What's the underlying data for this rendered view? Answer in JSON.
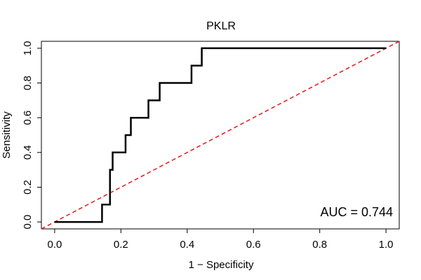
{
  "chart_data": {
    "type": "line",
    "title": "PKLR",
    "xlabel": "1 − Specificity",
    "ylabel": "Sensitivity",
    "xlim": [
      -0.04,
      1.04
    ],
    "ylim": [
      -0.04,
      1.04
    ],
    "xticks": [
      "0.0",
      "0.2",
      "0.4",
      "0.6",
      "0.8",
      "1.0"
    ],
    "yticks": [
      "0.0",
      "0.2",
      "0.4",
      "0.6",
      "0.8",
      "1.0"
    ],
    "grid": false,
    "annotation": "AUC = 0.744",
    "series": [
      {
        "name": "ROC curve",
        "style": "solid",
        "color": "#000000",
        "x": [
          0.0,
          0.143,
          0.143,
          0.167,
          0.167,
          0.175,
          0.175,
          0.183,
          0.183,
          0.214,
          0.214,
          0.23,
          0.23,
          0.283,
          0.283,
          0.317,
          0.317,
          0.413,
          0.413,
          0.444,
          0.444,
          1.0
        ],
        "y": [
          0.0,
          0.0,
          0.1,
          0.1,
          0.3,
          0.3,
          0.4,
          0.4,
          0.4,
          0.4,
          0.5,
          0.5,
          0.6,
          0.6,
          0.7,
          0.7,
          0.8,
          0.8,
          0.9,
          0.9,
          1.0,
          1.0
        ]
      },
      {
        "name": "Reference line",
        "style": "dashed",
        "color": "#e31a1c",
        "x": [
          -0.04,
          1.04
        ],
        "y": [
          -0.04,
          1.04
        ]
      }
    ]
  }
}
